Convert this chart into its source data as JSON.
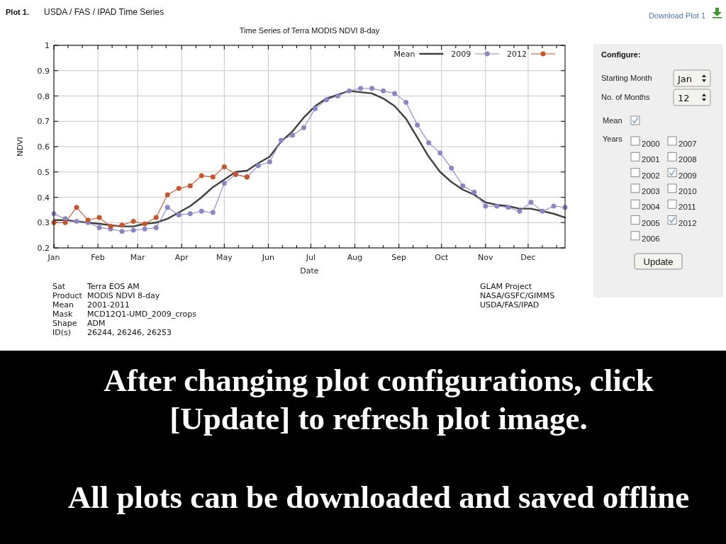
{
  "chart_data": {
    "type": "line",
    "title": "Time Series of Terra MODIS NDVI 8-day",
    "xlabel": "Date",
    "ylabel": "NDVI",
    "x": [
      "--01-01",
      "--01-09",
      "--01-17",
      "--01-25",
      "--02-02",
      "--02-10",
      "--02-18",
      "--02-26",
      "--03-06",
      "--03-14",
      "--03-22",
      "--03-30",
      "--04-07",
      "--04-15",
      "--04-23",
      "--05-01",
      "--05-09",
      "--05-17",
      "--05-25",
      "--06-02",
      "--06-10",
      "--06-18",
      "--06-26",
      "--07-04",
      "--07-12",
      "--07-20",
      "--07-28",
      "--08-05",
      "--08-13",
      "--08-21",
      "--08-29",
      "--09-06",
      "--09-14",
      "--09-22",
      "--09-30",
      "--10-08",
      "--10-16",
      "--10-24",
      "--11-01",
      "--11-09",
      "--11-17",
      "--11-25",
      "--12-03",
      "--12-11",
      "--12-19",
      "--12-27"
    ],
    "xlim": [
      "--01-01",
      "--12-27"
    ],
    "xticks": [
      {
        "value": "--01-01",
        "label": "Jan"
      },
      {
        "value": "--01-11",
        "label": null
      },
      {
        "value": "--01-21",
        "label": null
      },
      {
        "value": "--02-01",
        "label": "Feb"
      },
      {
        "value": "--02-11",
        "label": null
      },
      {
        "value": "--02-21",
        "label": null
      },
      {
        "value": "--03-01",
        "label": "Mar"
      },
      {
        "value": "--03-11",
        "label": null
      },
      {
        "value": "--03-21",
        "label": null
      },
      {
        "value": "--04-01",
        "label": "Apr"
      },
      {
        "value": "--04-11",
        "label": null
      },
      {
        "value": "--04-21",
        "label": null
      },
      {
        "value": "--05-01",
        "label": "May"
      },
      {
        "value": "--05-11",
        "label": null
      },
      {
        "value": "--05-21",
        "label": null
      },
      {
        "value": "--06-01",
        "label": "Jun"
      },
      {
        "value": "--06-11",
        "label": null
      },
      {
        "value": "--06-21",
        "label": null
      },
      {
        "value": "--07-01",
        "label": "Jul"
      },
      {
        "value": "--07-11",
        "label": null
      },
      {
        "value": "--07-21",
        "label": null
      },
      {
        "value": "--08-01",
        "label": "Aug"
      },
      {
        "value": "--08-11",
        "label": null
      },
      {
        "value": "--08-21",
        "label": null
      },
      {
        "value": "--09-01",
        "label": "Sep"
      },
      {
        "value": "--09-11",
        "label": null
      },
      {
        "value": "--09-21",
        "label": null
      },
      {
        "value": "--10-01",
        "label": "Oct"
      },
      {
        "value": "--10-11",
        "label": null
      },
      {
        "value": "--10-21",
        "label": null
      },
      {
        "value": "--11-01",
        "label": "Nov"
      },
      {
        "value": "--11-11",
        "label": null
      },
      {
        "value": "--11-21",
        "label": null
      },
      {
        "value": "--12-01",
        "label": "Dec"
      },
      {
        "value": "--12-11",
        "label": null
      },
      {
        "value": "--12-21",
        "label": null
      }
    ],
    "ylim": [
      0.2,
      1
    ],
    "yticks": [
      0.2,
      0.3,
      0.4,
      0.5,
      0.6,
      0.7,
      0.8,
      0.9,
      1
    ],
    "grid": true,
    "legend": "top right",
    "series": [
      {
        "name": "Mean",
        "color": "#404040",
        "marker": "none",
        "values": [
          0.31,
          0.31,
          0.305,
          0.3,
          0.295,
          0.29,
          0.285,
          0.285,
          0.295,
          0.3,
          0.315,
          0.34,
          0.365,
          0.4,
          0.44,
          0.47,
          0.5,
          0.505,
          0.535,
          0.56,
          0.62,
          0.66,
          0.715,
          0.76,
          0.79,
          0.805,
          0.82,
          0.815,
          0.81,
          0.79,
          0.76,
          0.71,
          0.635,
          0.56,
          0.5,
          0.46,
          0.43,
          0.41,
          0.38,
          0.37,
          0.365,
          0.355,
          0.355,
          0.345,
          0.335,
          0.32
        ]
      },
      {
        "name": "2009",
        "color": "#8a86c6",
        "marker": "circle",
        "values": [
          0.335,
          0.315,
          0.305,
          0.3,
          0.28,
          0.275,
          0.265,
          0.27,
          0.275,
          0.28,
          0.36,
          0.33,
          0.335,
          0.345,
          0.34,
          0.455,
          0.49,
          0.48,
          0.525,
          0.54,
          0.625,
          0.645,
          0.675,
          0.75,
          0.785,
          0.8,
          0.82,
          0.83,
          0.83,
          0.82,
          0.81,
          0.775,
          0.685,
          0.615,
          0.575,
          0.515,
          0.445,
          0.42,
          0.365,
          0.365,
          0.36,
          0.345,
          0.38,
          0.345,
          0.365,
          0.36
        ]
      },
      {
        "name": "2012",
        "color": "#c8542c",
        "marker": "circle",
        "x": [
          "--01-01",
          "--01-09",
          "--01-17",
          "--01-25",
          "--02-02",
          "--02-10",
          "--02-18",
          "--02-26",
          "--03-06",
          "--03-14",
          "--03-22",
          "--03-30",
          "--04-07",
          "--04-15",
          "--04-23",
          "--05-01",
          "--05-09",
          "--05-17"
        ],
        "values": [
          0.3,
          0.3,
          0.36,
          0.31,
          0.32,
          0.285,
          0.29,
          0.305,
          0.295,
          0.32,
          0.41,
          0.435,
          0.445,
          0.485,
          0.48,
          0.52,
          0.49,
          0.48
        ]
      }
    ],
    "annotations": [
      "Plot 1.",
      "USDA / FAS / IPAD Time Series",
      "Download Plot 1",
      "Sat",
      "Terra EOS AM",
      "Product",
      "MODIS NDVI 8-day",
      "Mean",
      "2001-2011",
      "Mask",
      "MCD12Q1-UMD_2009_crops",
      "Shape",
      "ADM",
      "ID(s)",
      "26244, 26246, 26253",
      "GLAM Project",
      "NASA/GSFC/GIMMS",
      "USDA/FAS/IPAD",
      "After changing plot configurations, click [Update] to refresh plot image.",
      "All plots can be downloaded and saved offline",
      "Configure:",
      "Starting Month",
      "Jan",
      "No. of Months",
      "12",
      "Mean",
      "Years",
      "2000",
      "2001",
      "2002",
      "2003",
      "2004",
      "2005",
      "2006",
      "2007",
      "2008",
      "2009",
      "2010",
      "2011",
      "2012",
      "Update"
    ]
  }
}
